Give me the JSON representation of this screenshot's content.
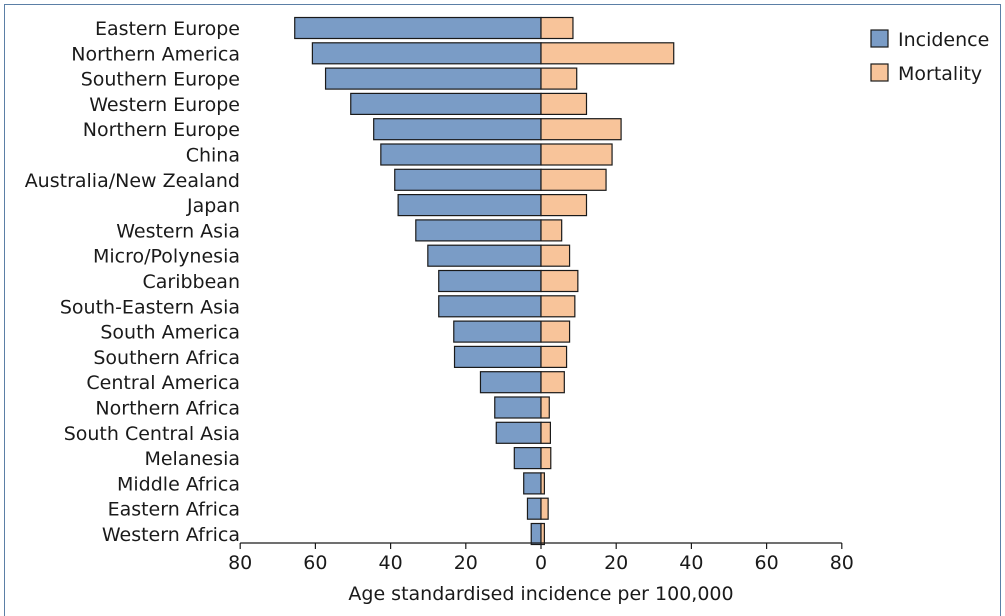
{
  "chart_data": {
    "type": "bar",
    "orientation": "horizontal-butterfly",
    "categories": [
      "Eastern Europe",
      "Northern America",
      "Southern Europe",
      "Western Europe",
      "Northern Europe",
      "China",
      "Australia/New Zealand",
      "Japan",
      "Western Asia",
      "Micro/Polynesia",
      "Caribbean",
      "South-Eastern Asia",
      "South America",
      "Southern Africa",
      "Central America",
      "Northern Africa",
      "South Central Asia",
      "Melanesia",
      "Middle Africa",
      "Eastern Africa",
      "Western Africa"
    ],
    "series": [
      {
        "name": "Incidence",
        "color": "#7a9cc6",
        "side": "left",
        "values": [
          65.5,
          60.8,
          57.3,
          50.6,
          44.5,
          42.6,
          38.9,
          38.0,
          33.3,
          30.1,
          27.2,
          27.2,
          23.2,
          23.0,
          16.1,
          12.3,
          11.9,
          7.1,
          4.6,
          3.6,
          2.6
        ]
      },
      {
        "name": "Mortality",
        "color": "#f8c49a",
        "side": "right",
        "values": [
          8.5,
          35.3,
          9.5,
          12.1,
          21.3,
          18.9,
          17.3,
          12.1,
          5.5,
          7.6,
          9.8,
          9.0,
          7.6,
          6.8,
          6.2,
          2.2,
          2.5,
          2.6,
          0.9,
          1.9,
          0.9
        ]
      }
    ],
    "xlabel": "Age standardised incidence per 100,000",
    "xlim": [
      -80,
      80
    ],
    "x_tick_labels": [
      "80",
      "60",
      "40",
      "20",
      "0",
      "20",
      "40",
      "60",
      "80"
    ],
    "legend_position": "top-right",
    "grid": false,
    "bar_outline_color": "#1a1a1a",
    "frame_color": "#5b7fa6"
  }
}
